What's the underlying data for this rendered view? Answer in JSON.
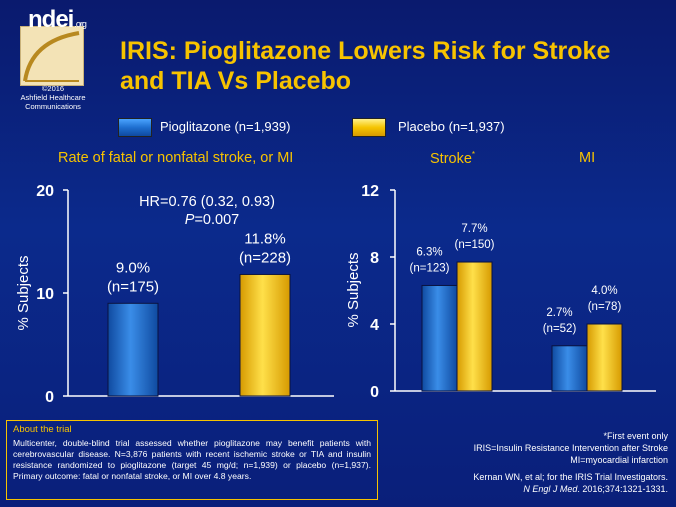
{
  "logo": {
    "brand": "ndei",
    "suffix": ".org",
    "copyright_lines": [
      "©2016",
      "Ashfield Healthcare",
      "Communications"
    ]
  },
  "title_lines": [
    "IRIS: Pioglitazone Lowers Risk for Stroke",
    "and TIA Vs Placebo"
  ],
  "legend": [
    {
      "label": "Pioglitazone (n=1,939)",
      "color": "#1e6fd0"
    },
    {
      "label": "Placebo (n=1,937)",
      "color": "#f5c400"
    }
  ],
  "colors": {
    "pioglitazone": "#1e6fd0",
    "placebo": "#f5c400",
    "accent": "#f7c300",
    "background": "#0b2a8c"
  },
  "chart_data": [
    {
      "type": "bar",
      "title": "Rate of fatal or nonfatal stroke, or MI",
      "ylabel": "% Subjects",
      "ylim": [
        0,
        20
      ],
      "yticks": [
        "0",
        "10",
        "20"
      ],
      "categories": [
        ""
      ],
      "series": [
        {
          "name": "Pioglitazone (n=1,939)",
          "values": [
            9.0
          ],
          "labels": [
            "9.0%",
            "(n=175)"
          ]
        },
        {
          "name": "Placebo (n=1,937)",
          "values": [
            11.8
          ],
          "labels": [
            "11.8%",
            "(n=228)"
          ]
        }
      ],
      "annotation": {
        "hr": "HR=0.76 (0.32, 0.93)",
        "p_prefix": "P",
        "p_value": "=0.007"
      }
    },
    {
      "type": "bar",
      "ylabel": "% Subjects",
      "ylim": [
        0,
        12
      ],
      "yticks": [
        "0",
        "4",
        "8",
        "12"
      ],
      "categories": [
        "Stroke",
        "MI"
      ],
      "category_marks": [
        "*",
        ""
      ],
      "series": [
        {
          "name": "Pioglitazone (n=1,939)",
          "values": [
            6.3,
            2.7
          ],
          "labels": [
            [
              "6.3%",
              "(n=123)"
            ],
            [
              "2.7%",
              "(n=52)"
            ]
          ]
        },
        {
          "name": "Placebo (n=1,937)",
          "values": [
            7.7,
            4.0
          ],
          "labels": [
            [
              "7.7%",
              "(n=150)"
            ],
            [
              "4.0%",
              "(n=78)"
            ]
          ]
        }
      ]
    }
  ],
  "about": {
    "heading": "About the trial",
    "body": "Multicenter, double-blind trial assessed whether pioglitazone may benefit patients with cerebrovascular disease. N=3,876 patients with recent ischemic stroke or TIA and insulin resistance randomized to pioglitazone (target 45 mg/d; n=1,939) or placebo (n=1,937). Primary outcome: fatal or nonfatal stroke, or MI over 4.8 years."
  },
  "notes": {
    "lines": [
      "*First event only",
      "IRIS=Insulin Resistance Intervention after Stroke",
      "MI=myocardial infarction"
    ],
    "ref_line1": "Kernan WN, et al; for the IRIS Trial Investigators.",
    "ref_journal": "N Engl J Med",
    "ref_rest": ". 2016;374:1321-1331."
  }
}
